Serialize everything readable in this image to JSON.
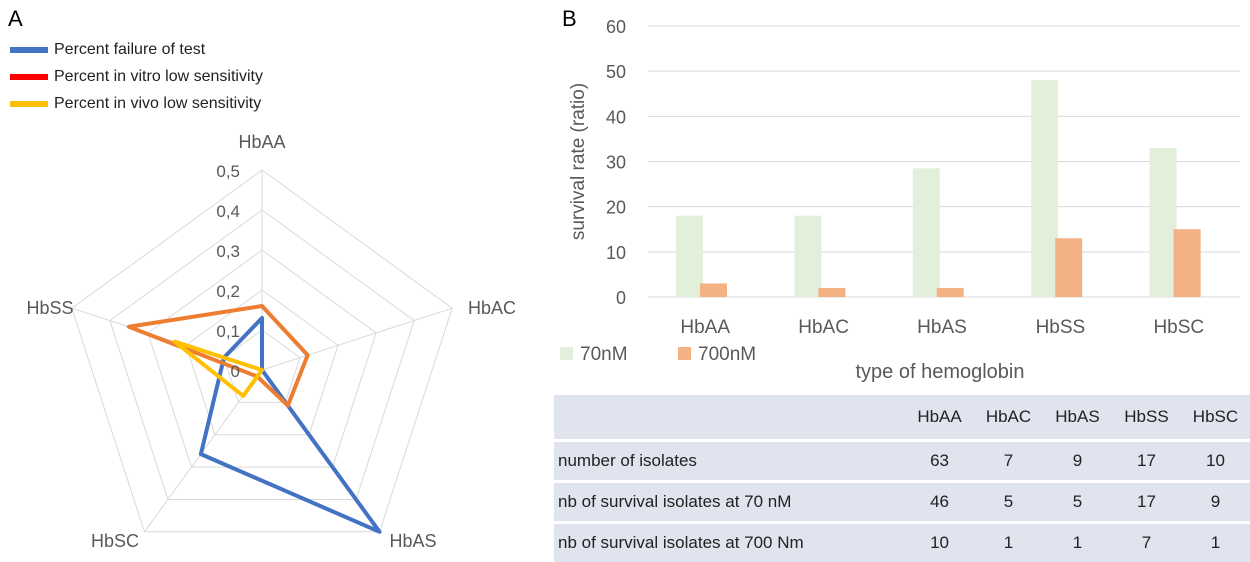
{
  "panels": {
    "a": "A",
    "b": "B"
  },
  "radar": {
    "axes": [
      "HbAA",
      "HbAC",
      "HbAS",
      "HbSC",
      "HbSS"
    ],
    "ticks": [
      "0",
      "0,1",
      "0,2",
      "0,3",
      "0,4",
      "0,5"
    ],
    "max": 0.5,
    "legend_swatch_colors": [
      "#4472c4",
      "#ff0000",
      "#ffc000"
    ],
    "series": [
      {
        "name": "Percent failure of test",
        "color": "#4472c4",
        "values": [
          0.13,
          0.0,
          0.5,
          0.26,
          0.1
        ]
      },
      {
        "name": "Percent in vitro low sensitivity",
        "color": "#ed7d31",
        "values": [
          0.16,
          0.12,
          0.11,
          0.02,
          0.35
        ]
      },
      {
        "name": "Percent in vivo low sensitivity",
        "color": "#ffc000",
        "values": [
          0.0,
          0.0,
          0.0,
          0.08,
          0.23
        ]
      }
    ]
  },
  "chart_data": {
    "type": "bar",
    "categories": [
      "HbAA",
      "HbAC",
      "HbAS",
      "HbSS",
      "HbSC"
    ],
    "series": [
      {
        "name": "70nM",
        "color": "#e2efda",
        "values": [
          18,
          18,
          28.5,
          48,
          33
        ]
      },
      {
        "name": "700nM",
        "color": "#f4b183",
        "values": [
          3,
          2,
          2,
          13,
          15
        ]
      }
    ],
    "xlabel": "type of hemoglobin",
    "ylabel": "survival rate (ratio)",
    "ylim": [
      0,
      60
    ],
    "yticks": [
      0,
      10,
      20,
      30,
      40,
      50,
      60
    ],
    "grid": true,
    "legend": "bottom-left"
  },
  "table": {
    "columns": [
      "",
      "HbAA",
      "HbAC",
      "HbAS",
      "HbSS",
      "HbSC"
    ],
    "rows": [
      {
        "label": "number of isolates",
        "values": [
          "63",
          "7",
          "9",
          "17",
          "10"
        ]
      },
      {
        "label": "nb of survival isolates at 70 nM",
        "values": [
          "46",
          "5",
          "5",
          "17",
          "9"
        ]
      },
      {
        "label": "nb of survival isolates at 700 Nm",
        "values": [
          "10",
          "1",
          "1",
          "7",
          "1"
        ]
      }
    ]
  }
}
